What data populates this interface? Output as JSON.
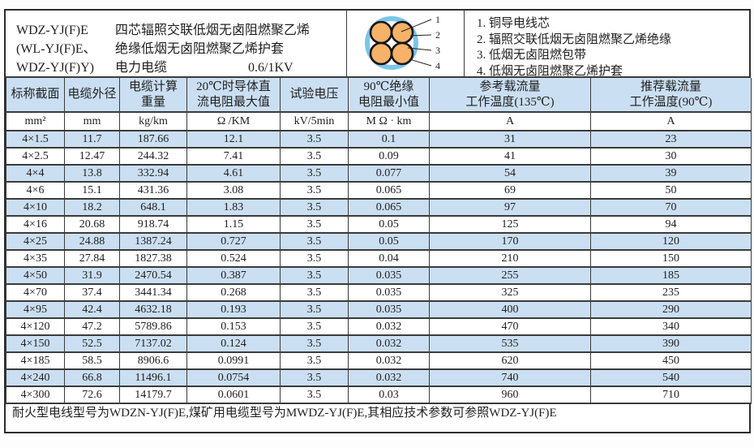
{
  "colors": {
    "row_highlight": "#cbdff2",
    "header_fill": "#cbdff2",
    "grid_line": "#3b3b3b",
    "sheath_blue": "#7cc5e9",
    "conductor_orange": "#f6b269"
  },
  "info": {
    "models": [
      "WDZ-YJ(F)E",
      "(WL-YJ(F)E、",
      "WDZ-YJ(F)Y)"
    ],
    "description_line1": "四芯辐照交联低烟无卤阻燃聚乙烯",
    "description_line2": "绝缘低烟无卤阻燃聚乙烯护套",
    "description_line3": "电力电缆",
    "voltage_rating": "0.6/1KV"
  },
  "diagram": {
    "callouts": [
      "1",
      "2",
      "3",
      "4"
    ]
  },
  "legend": {
    "items": [
      "1. 铜导电线芯",
      "2. 辐照交联低烟无卤阻燃聚乙烯绝缘",
      "3. 低烟无卤阻燃包带",
      "4. 低烟无卤阻燃聚乙烯护套"
    ]
  },
  "table": {
    "headers": [
      "标称截面",
      "电缆外径",
      "电缆计算\n重量",
      "20℃时导体直\n流电阻最大值",
      "试验电压",
      "90℃绝缘\n电阻最小值",
      "参考载流量\n工作温度(135℃)",
      "推荐载流量\n工作温度(90℃)"
    ],
    "units": [
      "mm²",
      "mm",
      "kg/km",
      "Ω /KM",
      "kV/5min",
      "M Ω · km",
      "A",
      "A"
    ],
    "rows": [
      [
        "4×1.5",
        "11.7",
        "187.66",
        "12.1",
        "3.5",
        "0.1",
        "31",
        "23"
      ],
      [
        "4×2.5",
        "12.47",
        "244.32",
        "7.41",
        "3.5",
        "0.09",
        "41",
        "30"
      ],
      [
        "4×4",
        "13.8",
        "332.94",
        "4.61",
        "3.5",
        "0.077",
        "54",
        "39"
      ],
      [
        "4×6",
        "15.1",
        "431.36",
        "3.08",
        "3.5",
        "0.065",
        "69",
        "50"
      ],
      [
        "4×10",
        "18.2",
        "648.1",
        "1.83",
        "3.5",
        "0.065",
        "97",
        "70"
      ],
      [
        "4×16",
        "20.68",
        "918.74",
        "1.15",
        "3.5",
        "0.05",
        "125",
        "94"
      ],
      [
        "4×25",
        "24.88",
        "1387.24",
        "0.727",
        "3.5",
        "0.05",
        "170",
        "120"
      ],
      [
        "4×35",
        "27.84",
        "1827.38",
        "0.524",
        "3.5",
        "0.04",
        "210",
        "150"
      ],
      [
        "4×50",
        "31.9",
        "2470.54",
        "0.387",
        "3.5",
        "0.035",
        "255",
        "185"
      ],
      [
        "4×70",
        "37.4",
        "3441.34",
        "0.268",
        "3.5",
        "0.035",
        "325",
        "235"
      ],
      [
        "4×95",
        "42.4",
        "4632.18",
        "0.193",
        "3.5",
        "0.035",
        "400",
        "290"
      ],
      [
        "4×120",
        "47.2",
        "5789.86",
        "0.153",
        "3.5",
        "0.032",
        "470",
        "340"
      ],
      [
        "4×150",
        "52.5",
        "7137.02",
        "0.124",
        "3.5",
        "0.032",
        "535",
        "390"
      ],
      [
        "4×185",
        "58.5",
        "8906.6",
        "0.0991",
        "3.5",
        "0.032",
        "620",
        "450"
      ],
      [
        "4×240",
        "66.8",
        "11496.1",
        "0.0754",
        "3.5",
        "0.032",
        "740",
        "540"
      ],
      [
        "4×300",
        "72.6",
        "14179.7",
        "0.0601",
        "3.5",
        "0.03",
        "960",
        "710"
      ]
    ]
  },
  "footer_note": "耐火型电线型号为WDZN-YJ(F)E,煤矿用电缆型号为MWDZ-YJ(F)E,其相应技术参数可参照WDZ-YJ(F)E"
}
